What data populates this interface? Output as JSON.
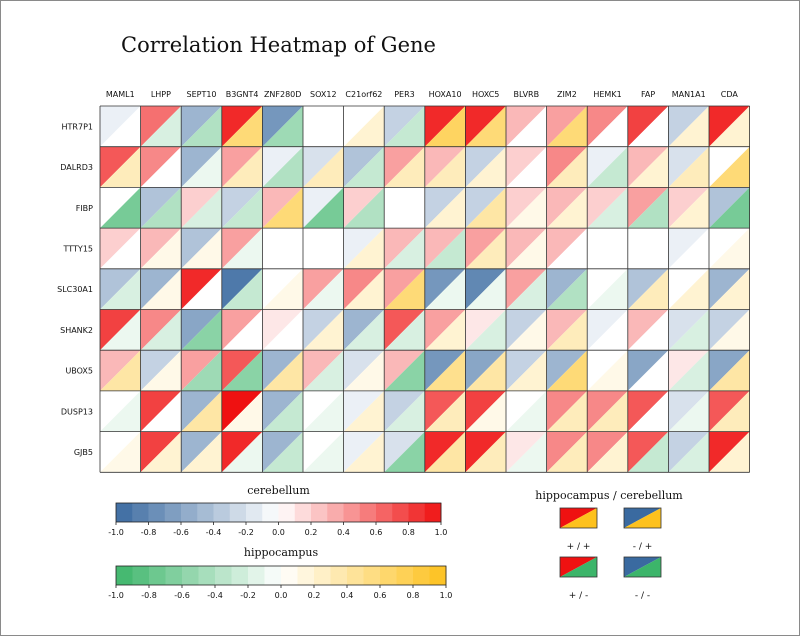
{
  "chart_data": {
    "type": "heatmap",
    "title": "Correlation Heatmap of Gene",
    "columns": [
      "MAML1",
      "LHPP",
      "SEPT10",
      "B3GNT4",
      "ZNF280D",
      "SOX12",
      "C21orf62",
      "PER3",
      "HOXA10",
      "HOXC5",
      "BLVRB",
      "ZIM2",
      "HEMK1",
      "FAP",
      "MAN1A1",
      "CDA"
    ],
    "rows": [
      "HTR7P1",
      "DALRD3",
      "FIBP",
      "TTTY15",
      "SLC30A1",
      "SHANK2",
      "UBOX5",
      "DUSP13",
      "GJB5"
    ],
    "series": [
      {
        "name": "cerebellum",
        "values": [
          [
            -0.1,
            0.6,
            -0.5,
            0.9,
            -0.7,
            0.0,
            0.0,
            -0.3,
            0.9,
            0.9,
            0.3,
            0.4,
            0.5,
            0.8,
            -0.3,
            0.9
          ],
          [
            0.7,
            0.5,
            -0.5,
            0.4,
            -0.1,
            -0.2,
            -0.4,
            0.4,
            0.3,
            -0.3,
            0.2,
            0.5,
            -0.1,
            0.3,
            -0.2,
            0.0
          ],
          [
            0.0,
            -0.4,
            0.2,
            -0.3,
            0.3,
            -0.1,
            0.2,
            0.0,
            -0.3,
            -0.3,
            0.2,
            0.3,
            0.2,
            0.4,
            0.2,
            -0.4
          ],
          [
            0.2,
            0.3,
            -0.4,
            0.4,
            0.0,
            0.0,
            -0.1,
            0.3,
            0.3,
            0.4,
            0.3,
            0.3,
            0.0,
            0.0,
            -0.1,
            0.0
          ],
          [
            -0.4,
            -0.5,
            0.9,
            -0.9,
            0.0,
            0.4,
            0.5,
            0.4,
            -0.7,
            -0.8,
            0.4,
            -0.5,
            0.0,
            -0.4,
            0.0,
            -0.5
          ],
          [
            0.8,
            0.5,
            -0.6,
            0.4,
            0.1,
            -0.3,
            -0.5,
            0.7,
            0.4,
            0.1,
            -0.3,
            0.3,
            -0.1,
            0.3,
            -0.2,
            -0.3
          ],
          [
            0.3,
            -0.3,
            0.4,
            0.7,
            -0.5,
            0.3,
            -0.2,
            0.3,
            -0.7,
            -0.6,
            -0.3,
            -0.5,
            0.0,
            -0.6,
            0.1,
            -0.6
          ],
          [
            0.0,
            0.8,
            -0.5,
            1.0,
            -0.5,
            0.0,
            -0.1,
            -0.3,
            0.7,
            0.8,
            0.0,
            0.5,
            0.5,
            0.7,
            -0.2,
            0.7
          ],
          [
            0.0,
            0.8,
            -0.5,
            0.9,
            -0.5,
            0.0,
            -0.1,
            -0.2,
            0.9,
            0.9,
            0.1,
            0.5,
            0.5,
            0.7,
            -0.3,
            0.9
          ]
        ]
      },
      {
        "name": "hippocampus",
        "values": [
          [
            0.0,
            -0.2,
            -0.4,
            0.6,
            -0.5,
            0.0,
            0.2,
            -0.3,
            0.7,
            0.6,
            0.0,
            0.6,
            0.0,
            0.0,
            0.2,
            0.2
          ],
          [
            0.3,
            0.0,
            -0.1,
            0.3,
            -0.4,
            0.3,
            -0.3,
            0.3,
            0.3,
            0.2,
            0.0,
            0.3,
            -0.3,
            0.2,
            0.3,
            0.6
          ],
          [
            -0.7,
            -0.4,
            -0.2,
            -0.3,
            0.6,
            -0.7,
            -0.4,
            0.0,
            0.2,
            0.4,
            0.1,
            0.2,
            -0.2,
            -0.4,
            0.2,
            -0.7
          ],
          [
            0.0,
            0.1,
            0.1,
            -0.1,
            0.0,
            0.0,
            0.2,
            -0.2,
            -0.3,
            0.3,
            0.1,
            0.0,
            0.0,
            0.0,
            0.0,
            0.1
          ],
          [
            -0.2,
            0.1,
            0.0,
            -0.3,
            0.1,
            -0.1,
            0.2,
            0.6,
            -0.1,
            -0.1,
            -0.2,
            -0.4,
            -0.1,
            0.3,
            0.2,
            0.2
          ],
          [
            -0.1,
            -0.2,
            -0.6,
            0.0,
            0.0,
            0.2,
            -0.2,
            -0.2,
            0.2,
            -0.2,
            0.1,
            0.3,
            0.0,
            0.0,
            -0.2,
            0.1
          ],
          [
            0.4,
            0.1,
            -0.5,
            -0.6,
            0.4,
            -0.2,
            0.1,
            -0.6,
            0.5,
            0.4,
            0.2,
            0.6,
            0.1,
            0.0,
            -0.2,
            0.4
          ],
          [
            -0.1,
            0.0,
            0.4,
            0.1,
            -0.3,
            -0.1,
            0.2,
            -0.2,
            0.3,
            0.1,
            -0.1,
            0.3,
            0.3,
            0.0,
            -0.1,
            0.3
          ],
          [
            0.1,
            0.2,
            0.2,
            -0.1,
            -0.3,
            -0.1,
            0.2,
            -0.6,
            0.4,
            0.3,
            -0.1,
            0.3,
            0.2,
            -0.3,
            -0.2,
            0.2
          ]
        ]
      }
    ],
    "colorbars": [
      {
        "label": "cerebellum",
        "range": [
          -1.0,
          1.0
        ],
        "ticks": [
          "-1.0",
          "-0.8",
          "-0.6",
          "-0.4",
          "-0.2",
          "0.0",
          "0.2",
          "0.4",
          "0.6",
          "0.8",
          "1.0"
        ],
        "negative_color": "#3a6aa0",
        "positive_color": "#ef1111"
      },
      {
        "label": "hippocampus",
        "range": [
          -1.0,
          1.0
        ],
        "ticks": [
          "-1.0",
          "-0.8",
          "-0.6",
          "-0.4",
          "-0.2",
          "0.0",
          "0.2",
          "0.4",
          "0.6",
          "0.8",
          "1.0"
        ],
        "negative_color": "#3cb56a",
        "positive_color": "#fdc11d"
      }
    ],
    "legend": {
      "title": "hippocampus / cerebellum",
      "items": [
        {
          "label": "+ / +",
          "cerebellum_color": "#ef1111",
          "hippocampus_color": "#fdc11d"
        },
        {
          "label": "- / +",
          "cerebellum_color": "#3a6aa0",
          "hippocampus_color": "#fdc11d"
        },
        {
          "label": "+ / -",
          "cerebellum_color": "#ef1111",
          "hippocampus_color": "#3cb56a"
        },
        {
          "label": "- / -",
          "cerebellum_color": "#3a6aa0",
          "hippocampus_color": "#3cb56a"
        }
      ]
    }
  }
}
